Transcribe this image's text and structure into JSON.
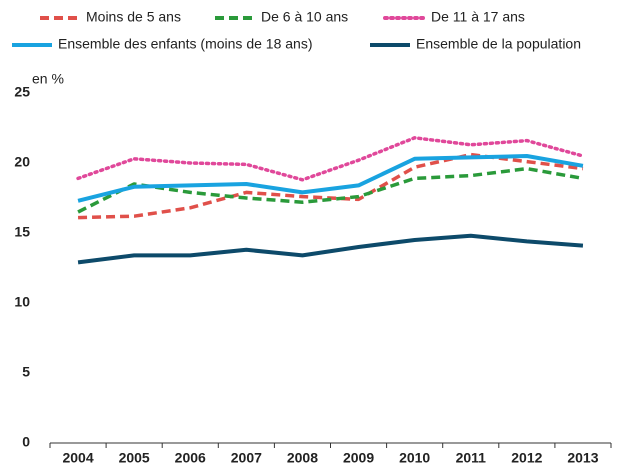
{
  "chart_data": {
    "type": "line",
    "y_label": "en %",
    "categories": [
      "2004",
      "2005",
      "2006",
      "2007",
      "2008",
      "2009",
      "2010",
      "2011",
      "2012",
      "2013"
    ],
    "series": [
      {
        "name": "Moins de 5 ans",
        "color": "#e0504a",
        "style": "dashed",
        "values": [
          16.1,
          16.2,
          16.8,
          17.9,
          17.6,
          17.4,
          19.7,
          20.6,
          20.1,
          19.6
        ]
      },
      {
        "name": "De 6 à 10 ans",
        "color": "#2a9a3a",
        "style": "dashed",
        "values": [
          16.5,
          18.5,
          17.9,
          17.5,
          17.2,
          17.6,
          18.9,
          19.1,
          19.6,
          18.9
        ]
      },
      {
        "name": "De 11 à 17 ans",
        "color": "#e0489a",
        "style": "dotted",
        "values": [
          18.9,
          20.3,
          20.0,
          19.9,
          18.8,
          20.2,
          21.8,
          21.3,
          21.6,
          20.5
        ]
      },
      {
        "name": "Ensemble des enfants (moins de 18 ans)",
        "color": "#19a3e0",
        "style": "solid",
        "values": [
          17.3,
          18.3,
          18.4,
          18.5,
          17.9,
          18.4,
          20.3,
          20.4,
          20.5,
          19.8
        ]
      },
      {
        "name": "Ensemble de la population",
        "color": "#0d4a6a",
        "style": "solid",
        "values": [
          12.9,
          13.4,
          13.4,
          13.8,
          13.4,
          14.0,
          14.5,
          14.8,
          14.4,
          14.1
        ]
      }
    ],
    "ylim": [
      0,
      25
    ],
    "yticks": [
      0,
      5,
      10,
      15,
      20,
      25
    ],
    "grid": false
  }
}
